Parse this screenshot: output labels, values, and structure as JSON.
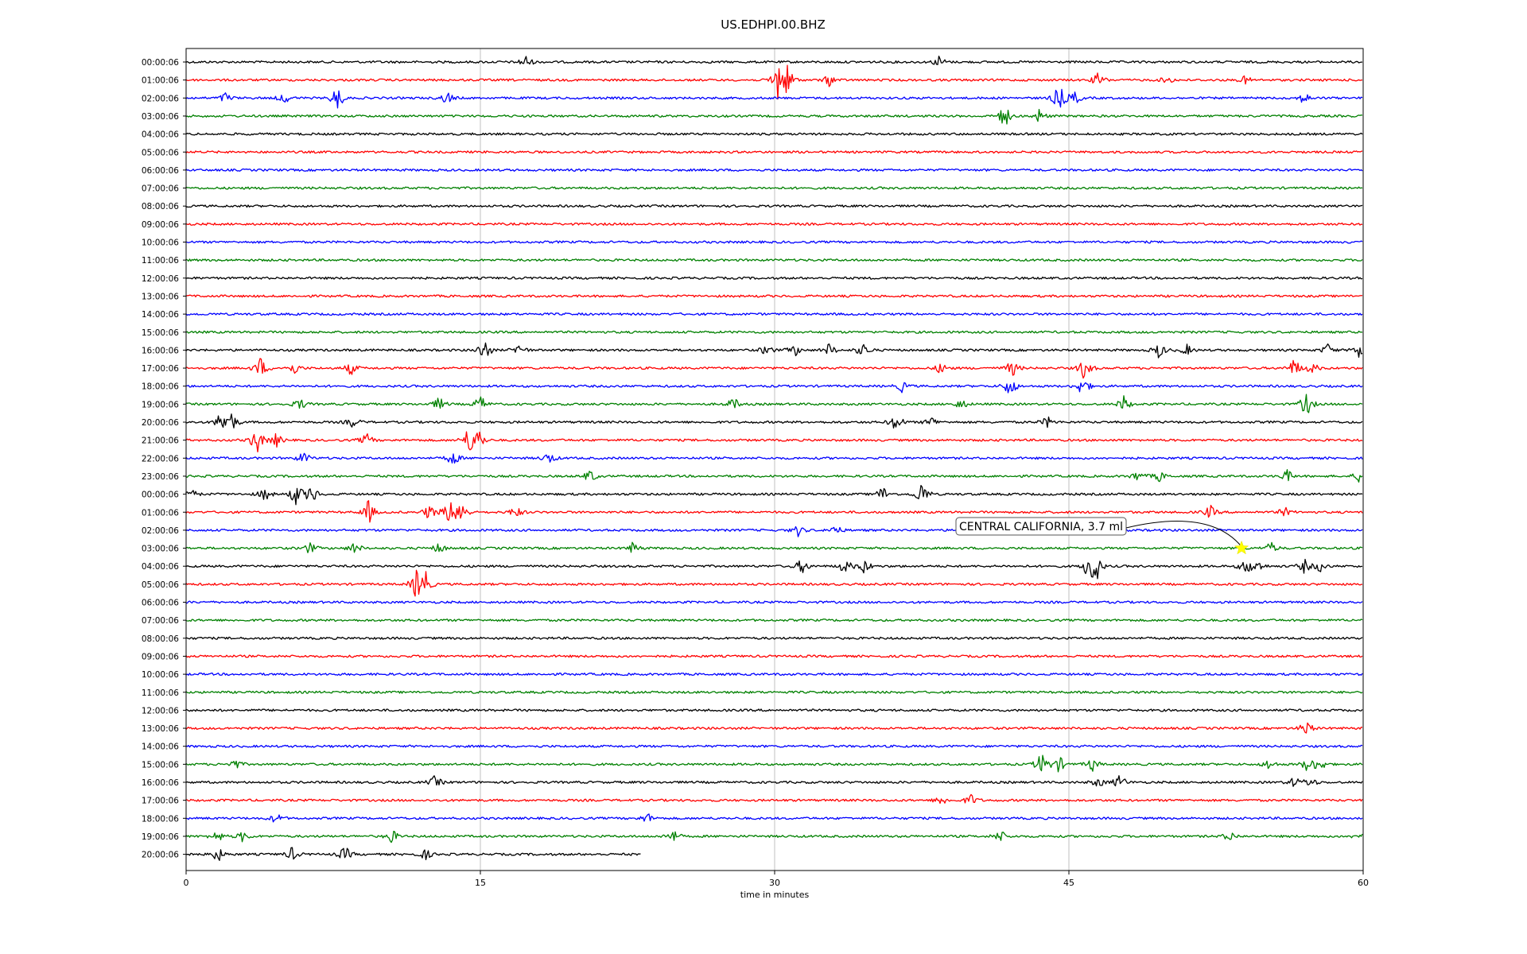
{
  "chart_data": {
    "type": "line",
    "title": "US.EDHPI.00.BHZ",
    "xlabel": "time in minutes",
    "ylabel": "",
    "xlim": [
      0,
      60
    ],
    "x_ticks": [
      "0",
      "15",
      "30",
      "45",
      "60"
    ],
    "grid": "vertical lines at 15, 30 and 45 minutes",
    "row_colors": [
      "#000000",
      "#ff0000",
      "#0000ff",
      "#008000"
    ],
    "rows": [
      {
        "label": "00:00:06",
        "events": [
          [
            17.3,
            1.0
          ],
          [
            38.4,
            0.9
          ]
        ]
      },
      {
        "label": "01:00:06",
        "events": [
          [
            30.2,
            3.5
          ],
          [
            30.7,
            2.0
          ],
          [
            32.8,
            0.9
          ],
          [
            46.5,
            1.1
          ],
          [
            50.0,
            0.6
          ],
          [
            54.0,
            0.6
          ]
        ]
      },
      {
        "label": "02:00:06",
        "events": [
          [
            2.0,
            0.8
          ],
          [
            5.0,
            0.8
          ],
          [
            7.7,
            2.0
          ],
          [
            13.3,
            1.0
          ],
          [
            44.5,
            2.2
          ],
          [
            45.3,
            1.0
          ],
          [
            57.0,
            0.9
          ]
        ]
      },
      {
        "label": "03:00:06",
        "events": [
          [
            41.7,
            2.0
          ],
          [
            43.5,
            1.0
          ]
        ]
      },
      {
        "label": "04:00:06",
        "events": []
      },
      {
        "label": "05:00:06",
        "events": []
      },
      {
        "label": "06:00:06",
        "events": []
      },
      {
        "label": "07:00:06",
        "events": []
      },
      {
        "label": "08:00:06",
        "events": []
      },
      {
        "label": "09:00:06",
        "events": []
      },
      {
        "label": "10:00:06",
        "events": []
      },
      {
        "label": "11:00:06",
        "events": []
      },
      {
        "label": "12:00:06",
        "events": []
      },
      {
        "label": "13:00:06",
        "events": []
      },
      {
        "label": "14:00:06",
        "events": []
      },
      {
        "label": "15:00:06",
        "events": []
      },
      {
        "label": "16:00:06",
        "events": [
          [
            15.2,
            1.8
          ],
          [
            17.0,
            1.0
          ],
          [
            29.6,
            0.9
          ],
          [
            31.0,
            1.0
          ],
          [
            32.8,
            1.0
          ],
          [
            34.5,
            1.2
          ],
          [
            49.6,
            1.2
          ],
          [
            51.0,
            0.8
          ],
          [
            58.2,
            0.9
          ],
          [
            59.8,
            1.2
          ]
        ]
      },
      {
        "label": "17:00:06",
        "events": [
          [
            3.8,
            1.6
          ],
          [
            5.5,
            0.9
          ],
          [
            8.4,
            1.0
          ],
          [
            38.5,
            0.9
          ],
          [
            42.1,
            1.3
          ],
          [
            45.8,
            1.8
          ],
          [
            56.5,
            1.5
          ],
          [
            57.4,
            0.9
          ]
        ]
      },
      {
        "label": "18:00:06",
        "events": [
          [
            36.5,
            0.8
          ],
          [
            42.0,
            1.7
          ],
          [
            45.7,
            1.6
          ]
        ]
      },
      {
        "label": "19:00:06",
        "events": [
          [
            5.8,
            0.9
          ],
          [
            12.9,
            1.0
          ],
          [
            15.0,
            1.3
          ],
          [
            27.9,
            1.0
          ],
          [
            39.5,
            0.8
          ],
          [
            47.8,
            1.2
          ],
          [
            57.1,
            2.0
          ]
        ]
      },
      {
        "label": "20:00:06",
        "events": [
          [
            1.8,
            1.8
          ],
          [
            2.3,
            1.5
          ],
          [
            8.5,
            0.8
          ],
          [
            36.2,
            1.5
          ],
          [
            38.0,
            0.8
          ],
          [
            43.9,
            0.8
          ]
        ]
      },
      {
        "label": "21:00:06",
        "events": [
          [
            3.6,
            2.2
          ],
          [
            4.6,
            1.0
          ],
          [
            9.2,
            1.0
          ],
          [
            14.4,
            2.0
          ],
          [
            14.9,
            1.8
          ]
        ]
      },
      {
        "label": "22:00:06",
        "events": [
          [
            6.0,
            1.0
          ],
          [
            13.6,
            1.2
          ],
          [
            18.5,
            0.9
          ]
        ]
      },
      {
        "label": "23:00:06",
        "events": [
          [
            20.6,
            1.0
          ],
          [
            48.5,
            0.8
          ],
          [
            49.6,
            0.8
          ],
          [
            56.1,
            1.0
          ],
          [
            59.8,
            0.8
          ]
        ]
      },
      {
        "label": "00:00:06",
        "events": [
          [
            0.2,
            1.0
          ],
          [
            4.0,
            1.0
          ],
          [
            5.6,
            1.8
          ],
          [
            6.4,
            1.5
          ],
          [
            35.5,
            1.2
          ],
          [
            37.5,
            2.0
          ]
        ]
      },
      {
        "label": "01:00:06",
        "events": [
          [
            9.3,
            1.8
          ],
          [
            12.4,
            1.2
          ],
          [
            13.4,
            1.8
          ],
          [
            14.0,
            2.2
          ],
          [
            16.8,
            1.0
          ],
          [
            52.2,
            1.0
          ],
          [
            56.0,
            0.7
          ]
        ]
      },
      {
        "label": "02:00:06",
        "events": [
          [
            31.2,
            0.8
          ],
          [
            33.1,
            0.8
          ]
        ]
      },
      {
        "label": "03:00:06",
        "events": [
          [
            6.3,
            0.9
          ],
          [
            8.6,
            0.9
          ],
          [
            12.9,
            0.8
          ],
          [
            22.8,
            0.9
          ],
          [
            55.3,
            0.9
          ]
        ]
      },
      {
        "label": "04:00:06",
        "events": [
          [
            31.4,
            1.2
          ],
          [
            33.6,
            1.2
          ],
          [
            34.6,
            1.1
          ],
          [
            46.1,
            3.0
          ],
          [
            46.4,
            1.5
          ],
          [
            54.0,
            1.2
          ],
          [
            54.6,
            1.0
          ],
          [
            57.0,
            1.0
          ],
          [
            57.8,
            0.8
          ]
        ]
      },
      {
        "label": "05:00:06",
        "events": [
          [
            11.8,
            2.8
          ],
          [
            12.2,
            1.5
          ]
        ]
      },
      {
        "label": "06:00:06",
        "events": []
      },
      {
        "label": "07:00:06",
        "events": []
      },
      {
        "label": "08:00:06",
        "events": []
      },
      {
        "label": "09:00:06",
        "events": []
      },
      {
        "label": "10:00:06",
        "events": []
      },
      {
        "label": "11:00:06",
        "events": []
      },
      {
        "label": "12:00:06",
        "events": []
      },
      {
        "label": "13:00:06",
        "events": [
          [
            57.1,
            1.2
          ]
        ]
      },
      {
        "label": "14:00:06",
        "events": []
      },
      {
        "label": "15:00:06",
        "events": [
          [
            2.5,
            0.8
          ],
          [
            43.6,
            1.8
          ],
          [
            44.5,
            1.2
          ],
          [
            46.2,
            1.0
          ],
          [
            55.2,
            0.8
          ],
          [
            57.2,
            1.2
          ],
          [
            57.8,
            1.0
          ]
        ]
      },
      {
        "label": "16:00:06",
        "events": [
          [
            12.7,
            1.0
          ],
          [
            46.5,
            0.8
          ],
          [
            47.6,
            1.2
          ],
          [
            56.5,
            0.8
          ],
          [
            57.3,
            0.8
          ]
        ]
      },
      {
        "label": "17:00:06",
        "events": [
          [
            38.5,
            0.8
          ],
          [
            40.0,
            0.9
          ]
        ]
      },
      {
        "label": "18:00:06",
        "events": [
          [
            4.6,
            0.8
          ],
          [
            23.5,
            0.8
          ]
        ]
      },
      {
        "label": "19:00:06",
        "events": [
          [
            1.6,
            0.9
          ],
          [
            2.9,
            0.8
          ],
          [
            10.5,
            1.0
          ],
          [
            24.8,
            1.0
          ],
          [
            41.5,
            1.0
          ],
          [
            53.2,
            0.8
          ],
          [
            60.0,
            1.3
          ]
        ]
      },
      {
        "label": "20:00:06",
        "end_minute": 23.2,
        "events": [
          [
            1.6,
            1.2
          ],
          [
            5.4,
            1.0
          ],
          [
            8.1,
            1.2
          ],
          [
            12.2,
            0.8
          ]
        ]
      }
    ],
    "annotation": {
      "text": "CENTRAL CALIFORNIA, 3.7 ml",
      "row_index": 27,
      "minute": 53.8,
      "marker": "star",
      "marker_color": "#ffff00"
    }
  }
}
